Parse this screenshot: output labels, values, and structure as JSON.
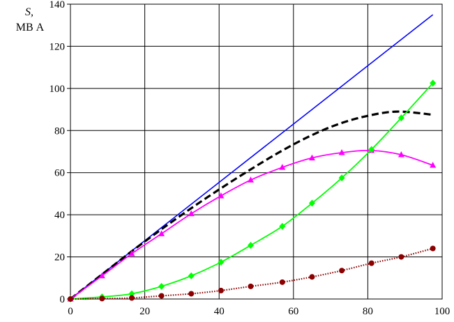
{
  "chart_data": {
    "type": "line",
    "ylabel_symbol": "S,",
    "ylabel_unit": "МВ А",
    "xlabel": "",
    "xlim": [
      0,
      100
    ],
    "ylim": [
      0,
      140
    ],
    "xticks": [
      0,
      20,
      40,
      60,
      80,
      100
    ],
    "yticks": [
      0,
      20,
      40,
      60,
      80,
      100,
      120,
      140
    ],
    "grid": true,
    "legend": "none",
    "series": [
      {
        "color": "#0000ff",
        "line": "solid",
        "marker": "none",
        "x": [
          0,
          97.5
        ],
        "y": [
          0,
          135
        ]
      },
      {
        "color": "#000000",
        "line": "dashed",
        "marker": "none",
        "x": [
          0,
          8,
          16,
          24,
          32,
          40,
          48,
          56,
          64,
          72,
          80,
          88,
          97.5
        ],
        "y": [
          0,
          11,
          22,
          32.5,
          42.5,
          52,
          61,
          69.5,
          77,
          83,
          87,
          89,
          87.5
        ]
      },
      {
        "color": "#ff00ff",
        "line": "solid",
        "marker": "triangle",
        "x": [
          0,
          8.5,
          16.5,
          24.5,
          32.5,
          40.5,
          48.5,
          57,
          65,
          73,
          81,
          89,
          97.5
        ],
        "y": [
          0,
          11,
          21.5,
          31,
          40.5,
          49,
          56.5,
          62.5,
          67,
          69.5,
          70.5,
          68.5,
          63.5
        ]
      },
      {
        "color": "#00ff00",
        "line": "solid",
        "marker": "diamond",
        "x": [
          0,
          8.5,
          16.5,
          24.5,
          32.5,
          40.5,
          48.5,
          57,
          65,
          73,
          81,
          89,
          97.5
        ],
        "y": [
          0,
          1,
          2.5,
          6,
          11,
          17.5,
          25.5,
          34.5,
          45.5,
          57.5,
          71,
          86,
          102.5
        ]
      },
      {
        "color": "#8b0000",
        "line": "dotted",
        "marker": "circle",
        "x": [
          0,
          8.5,
          16.5,
          24.5,
          32.5,
          40.5,
          48.5,
          57,
          65,
          73,
          81,
          89,
          97.5
        ],
        "y": [
          0,
          0.2,
          0.5,
          1.5,
          2.5,
          4,
          6,
          8,
          10.5,
          13.5,
          17,
          20,
          24
        ]
      }
    ]
  }
}
